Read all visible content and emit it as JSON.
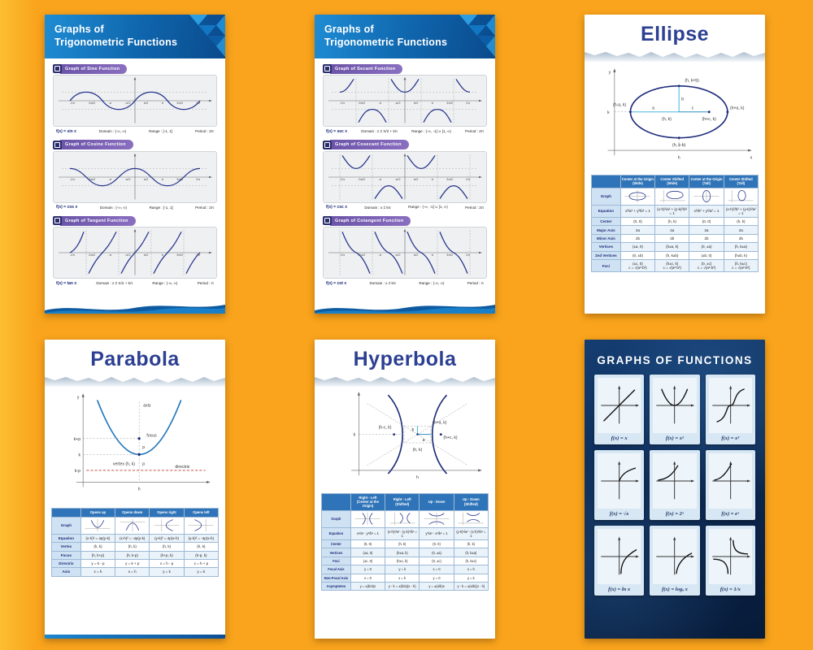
{
  "trig_sine_poster": {
    "title_line1": "Graphs of",
    "title_line2": "Trigonometric Functions",
    "sections": [
      {
        "label": "Graph of Sine Function",
        "fx": "f(x) = sin x",
        "domain": "Domain : (-∞, ∞)",
        "range": "Range : [-1, 1]",
        "period": "Period : 2π",
        "ticks": [
          "-2π",
          "-3π/2",
          "-π",
          "-π/2",
          "π/2",
          "π",
          "3π/2",
          "2π"
        ]
      },
      {
        "label": "Graph of Cosine Function",
        "fx": "f(x) = cos x",
        "domain": "Domain : (-∞, ∞)",
        "range": "Range : [-1, 1]",
        "period": "Period : 2π",
        "ticks": [
          "-2π",
          "-3π/2",
          "-π",
          "-π/2",
          "π/2",
          "π",
          "3π/2",
          "2π"
        ]
      },
      {
        "label": "Graph of Tangent Function",
        "fx": "f(x) = tan x",
        "domain": "Domain : x ≠ π/2 + kπ",
        "range": "Range : (-∞, ∞)",
        "period": "Period : π",
        "ticks": [
          "-2π",
          "-3π/2",
          "-π",
          "-π/2",
          "π/2",
          "π",
          "3π/2",
          "2π"
        ]
      }
    ]
  },
  "trig_sec_poster": {
    "title_line1": "Graphs of",
    "title_line2": "Trigonometric Functions",
    "sections": [
      {
        "label": "Graph of Secant Function",
        "fx": "f(x) = sec x",
        "domain": "Domain : x ≠ π/2 + kπ",
        "range": "Range : (-∞, -1] ∪ [1, ∞)",
        "period": "Period : 2π",
        "ticks": [
          "-2π",
          "-3π/2",
          "-π",
          "-π/2",
          "π/2",
          "π",
          "3π/2",
          "2π"
        ]
      },
      {
        "label": "Graph of Cosecant Function",
        "fx": "f(x) = csc x",
        "domain": "Domain : x ≠ kπ",
        "range": "Range : (-∞, -1] ∪ [1, ∞)",
        "period": "Period : 2π",
        "ticks": [
          "-2π",
          "-3π/2",
          "-π",
          "-π/2",
          "π/2",
          "π",
          "3π/2",
          "2π"
        ]
      },
      {
        "label": "Graph of Cotangent Function",
        "fx": "f(x) = cot x",
        "domain": "Domain : x ≠ kπ",
        "range": "Range : (-∞, ∞)",
        "period": "Period : π",
        "ticks": [
          "-2π",
          "-3π/2",
          "-π",
          "-π/2",
          "π/2",
          "π",
          "3π/2",
          "2π"
        ]
      }
    ]
  },
  "ellipse_poster": {
    "title": "Ellipse",
    "diagram": {
      "y": "y",
      "x": "x",
      "k": "k",
      "h": "h",
      "a": "a",
      "b": "b",
      "c": "c",
      "top": "(h, k+b)",
      "right": "(h+a, k)",
      "left": "(h-a, k)",
      "bottom": "(h, k-b)",
      "focus": "(h+c, k)",
      "center": "(h, k)"
    },
    "table": {
      "headers": [
        "",
        "Center at the Origin\n(Wide)",
        "Center Shifted\n(Wide)",
        "Center at the Origin\n(Tall)",
        "Center Shifted\n(Tall)"
      ],
      "rows": [
        [
          "Graph",
          "@ellipse-wide",
          "@ellipse-wide-s",
          "@ellipse-tall",
          "@ellipse-tall-s"
        ],
        [
          "Equation",
          "x²/a² + y²/b² = 1",
          "(x-h)²/a² + (y-k)²/b² = 1",
          "x²/b² + y²/a² = 1",
          "(x-h)²/b² + (y-k)²/a² = 1"
        ],
        [
          "Center",
          "(0, 0)",
          "(h, k)",
          "(0, 0)",
          "(h, k)"
        ],
        [
          "Major Axis",
          "2a",
          "2a",
          "2a",
          "2a"
        ],
        [
          "Minor Axis",
          "2b",
          "2b",
          "2b",
          "2b"
        ],
        [
          "Vertices",
          "(±a, 0)",
          "(h±a, k)",
          "(0, ±a)",
          "(h, k±a)"
        ],
        [
          "2nd Vertices",
          "(0, ±b)",
          "(h, k±b)",
          "(±b, 0)",
          "(h±b, k)"
        ],
        [
          "Foci",
          "(±c, 0)\nc = √(a²-b²)",
          "(h±c, k)\nc = √(a²-b²)",
          "(0, ±c)\nc = √(a²-b²)",
          "(h, k±c)\nc = √(a²-b²)"
        ]
      ]
    }
  },
  "parabola_poster": {
    "title": "Parabola",
    "diagram": {
      "y": "y",
      "h": "h",
      "axis": "axis",
      "focus": "focus",
      "vertex": "vertex (h, k)",
      "directrix": "directrix",
      "k_plus_p": "k+p",
      "k": "k",
      "k_minus_p": "k-p",
      "p1": "p",
      "p2": "p"
    },
    "table": {
      "headers": [
        "",
        "Opens up",
        "Opens down",
        "Opens right",
        "Opens left"
      ],
      "rows": [
        [
          "Graph",
          "@parab-up",
          "@parab-down",
          "@parab-right",
          "@parab-left"
        ],
        [
          "Equation",
          "(x-h)² = 4p(y-k)",
          "(x-h)² = -4p(y-k)",
          "(y-k)² = 4p(x-h)",
          "(y-k)² = -4p(x-h)"
        ],
        [
          "Vertex",
          "(h, k)",
          "(h, k)",
          "(h, k)",
          "(h, k)"
        ],
        [
          "Focus",
          "(h, k+p)",
          "(h, k-p)",
          "(h+p, k)",
          "(h-p, k)"
        ],
        [
          "Directrix",
          "y = k - p",
          "y = k + p",
          "x = h - p",
          "x = h + p"
        ],
        [
          "Axis",
          "x = h",
          "x = h",
          "y = k",
          "y = k"
        ]
      ]
    }
  },
  "hyperbola_poster": {
    "title": "Hyperbola",
    "diagram": {
      "k": "k",
      "h": "h",
      "a": "a",
      "b": "b",
      "left_focus": "(h-c, k)",
      "right_vertex": "(h+a, k)",
      "right_focus": "(h+c, k)",
      "center": "(h, k)"
    },
    "table": {
      "headers": [
        "",
        "Right - Left\n(Center at the Origin)",
        "Right - Left\n(Shifted)",
        "Up - Down",
        "Up - Down\n(Shifted)"
      ],
      "rows": [
        [
          "Graph",
          "@hyp-lr",
          "@hyp-lr-s",
          "@hyp-ud",
          "@hyp-ud-s"
        ],
        [
          "Equation",
          "x²/a² - y²/b² = 1",
          "(x-h)²/a² - (y-k)²/b² = 1",
          "y²/a² - x²/b² = 1",
          "(y-k)²/a² - (x-h)²/b² = 1"
        ],
        [
          "Center",
          "(0, 0)",
          "(h, k)",
          "(0, 0)",
          "(h, k)"
        ],
        [
          "Vertices",
          "(±a, 0)",
          "(h±a, k)",
          "(0, ±a)",
          "(h, k±a)"
        ],
        [
          "Foci",
          "(±c, 0)",
          "(h±c, k)",
          "(0, ±c)",
          "(h, k±c)"
        ],
        [
          "Focal Axis",
          "y = 0",
          "y = k",
          "x = 0",
          "x = h"
        ],
        [
          "Non-Focal Axis",
          "x = 0",
          "x = h",
          "y = 0",
          "y = k"
        ],
        [
          "Asymptotes",
          "y = ±(b/a)x",
          "y - k = ±(b/a)(x - h)",
          "y = ±(a/b)x",
          "y - k = ±(a/b)(x - h)"
        ]
      ]
    }
  },
  "functions_poster": {
    "title": "Graphs of Functions",
    "cards": [
      {
        "label": "f(x) = x"
      },
      {
        "label": "f(x) = x²"
      },
      {
        "label": "f(x) = x³"
      },
      {
        "label": "f(x) = √x"
      },
      {
        "label": "f(x) = 2ˣ"
      },
      {
        "label": "f(x) = eˣ"
      },
      {
        "label": "f(x) = ln x"
      },
      {
        "label": "f(x) = logₐ x"
      },
      {
        "label": "f(x) = 1/x"
      }
    ]
  }
}
